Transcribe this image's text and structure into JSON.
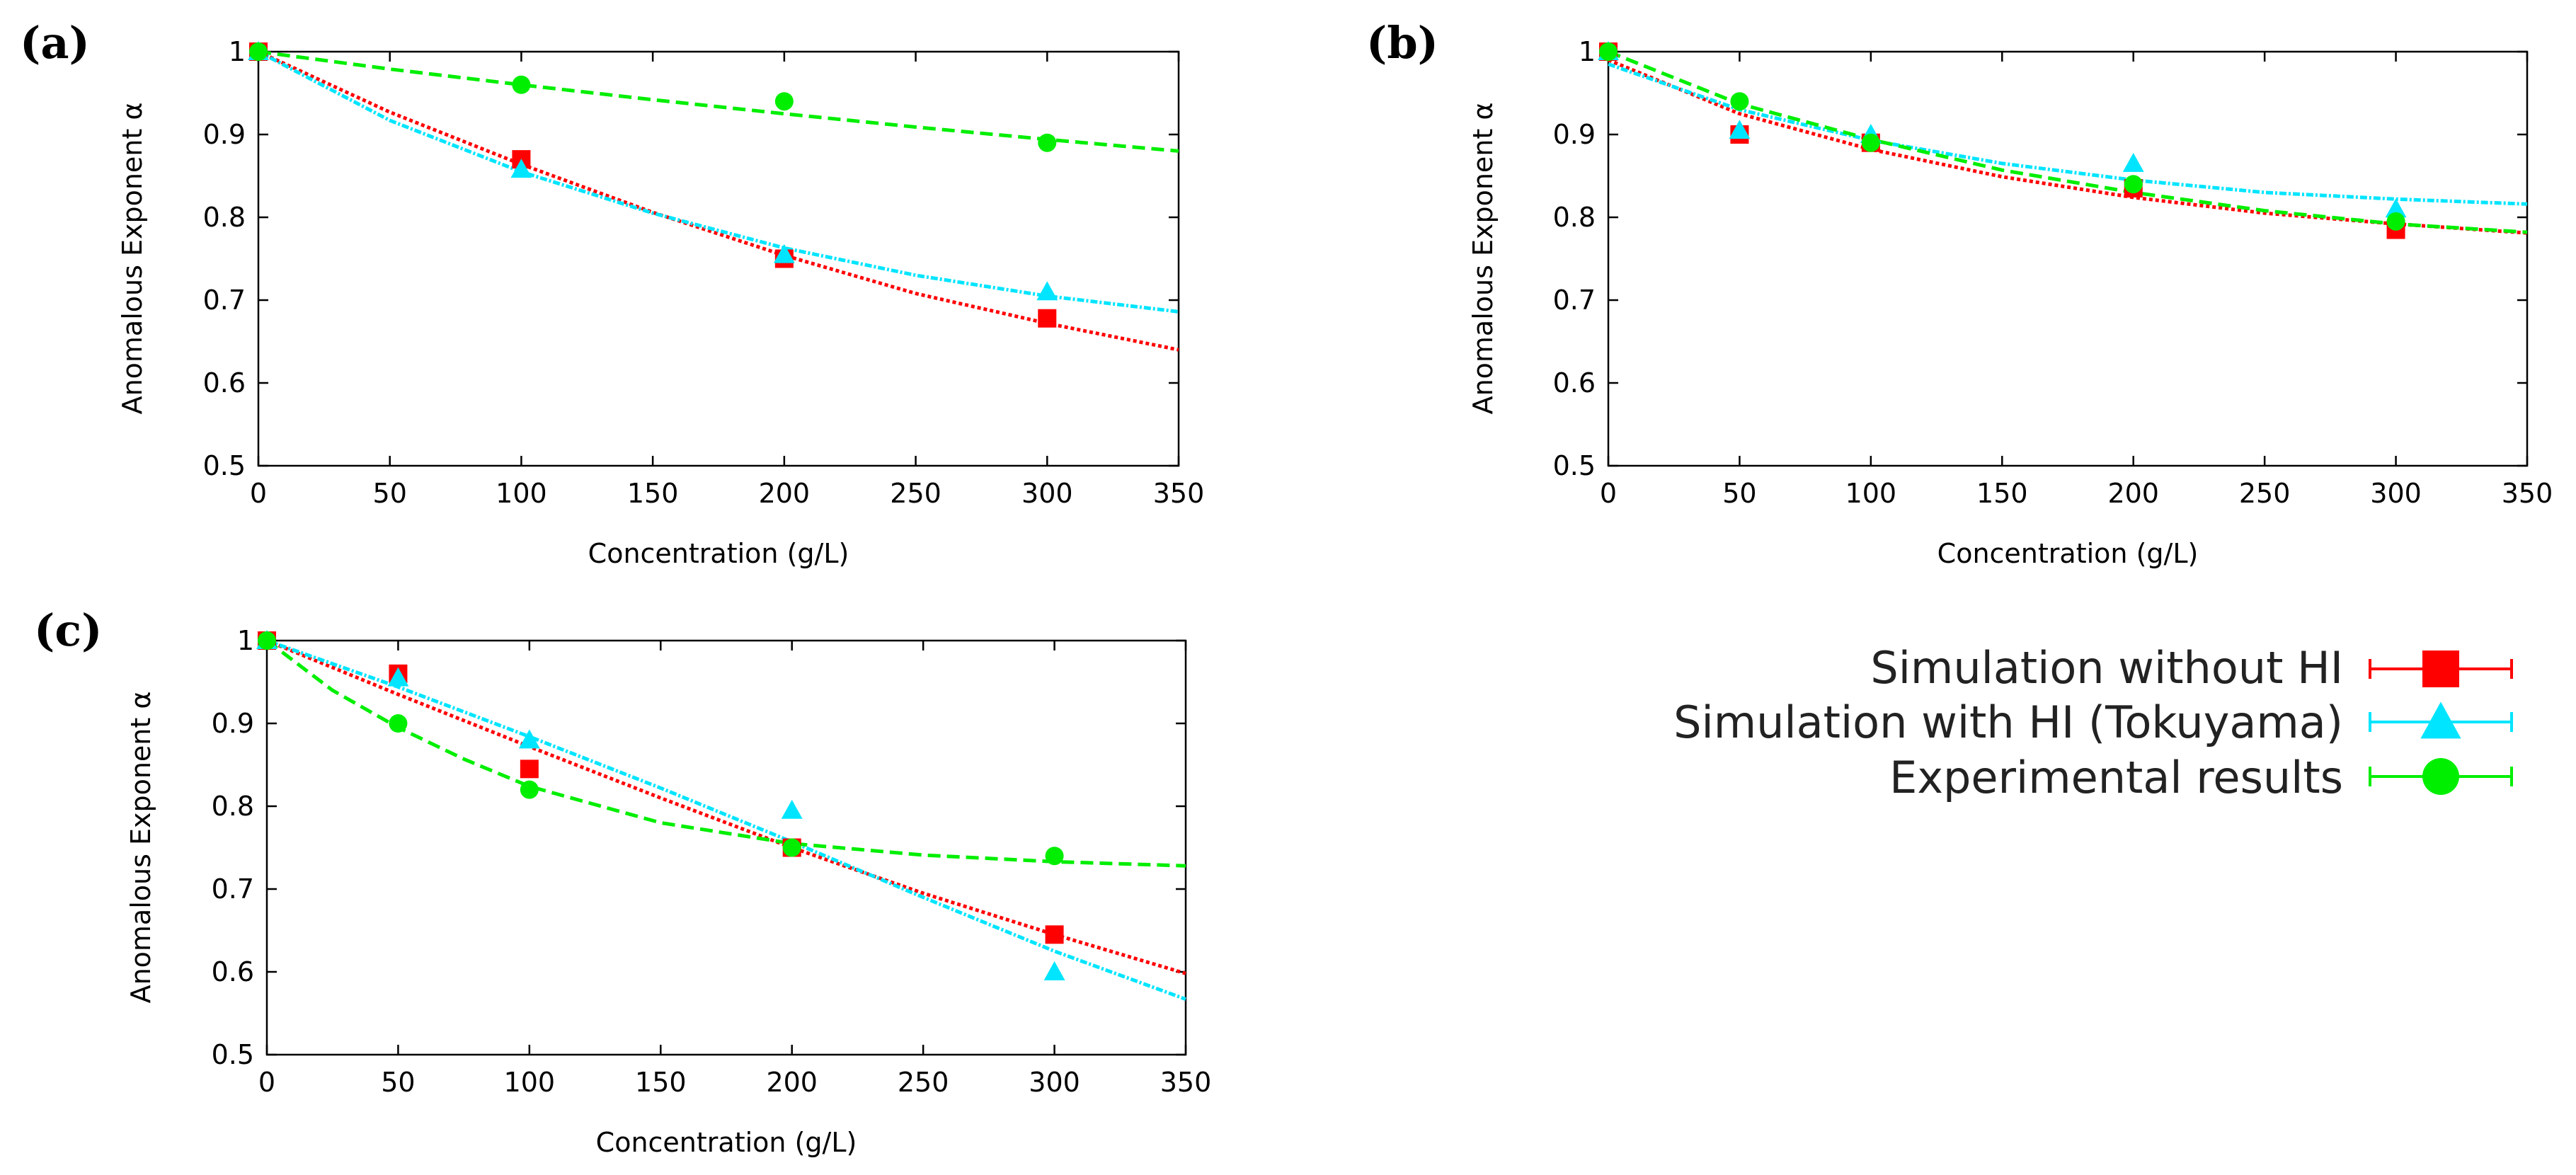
{
  "chart_data": [
    {
      "type": "scatter",
      "panel_label": "(a)",
      "xlabel": "Concentration (g/L)",
      "ylabel": "Anomalous Exponent α",
      "xlim": [
        0,
        350
      ],
      "ylim": [
        0.5,
        1
      ],
      "xticks": [
        "0",
        "50",
        "100",
        "150",
        "200",
        "250",
        "300",
        "350"
      ],
      "yticks": [
        "0.5",
        "0.6",
        "0.7",
        "0.8",
        "0.9",
        "1"
      ],
      "grid": false,
      "series": [
        {
          "name": "Simulation without HI",
          "color": "#ff0000",
          "marker": "square",
          "x": [
            0,
            100,
            200,
            300
          ],
          "y": [
            1.0,
            0.87,
            0.75,
            0.678
          ],
          "fit": [
            [
              0,
              1.0
            ],
            [
              50,
              0.927
            ],
            [
              100,
              0.864
            ],
            [
              150,
              0.806
            ],
            [
              200,
              0.754
            ],
            [
              250,
              0.708
            ],
            [
              300,
              0.672
            ],
            [
              350,
              0.64
            ]
          ]
        },
        {
          "name": "Simulation with HI (Tokuyama)",
          "color": "#00e5ff",
          "marker": "triangle",
          "x": [
            0,
            100,
            200,
            300
          ],
          "y": [
            1.0,
            0.858,
            0.755,
            0.71
          ],
          "fit": [
            [
              0,
              1.0
            ],
            [
              50,
              0.917
            ],
            [
              100,
              0.855
            ],
            [
              150,
              0.805
            ],
            [
              200,
              0.763
            ],
            [
              250,
              0.73
            ],
            [
              300,
              0.705
            ],
            [
              350,
              0.686
            ]
          ]
        },
        {
          "name": "Experimental results",
          "color": "#00ee00",
          "marker": "circle",
          "x": [
            0,
            100,
            200,
            300
          ],
          "y": [
            1.0,
            0.96,
            0.94,
            0.89
          ],
          "fit": [
            [
              0,
              1.0
            ],
            [
              50,
              0.979
            ],
            [
              100,
              0.96
            ],
            [
              150,
              0.942
            ],
            [
              200,
              0.925
            ],
            [
              250,
              0.909
            ],
            [
              300,
              0.894
            ],
            [
              350,
              0.88
            ]
          ]
        }
      ]
    },
    {
      "type": "scatter",
      "panel_label": "(b)",
      "xlabel": "Concentration (g/L)",
      "ylabel": "Anomalous Exponent α",
      "xlim": [
        0,
        350
      ],
      "ylim": [
        0.5,
        1
      ],
      "xticks": [
        "0",
        "50",
        "100",
        "150",
        "200",
        "250",
        "300",
        "350"
      ],
      "yticks": [
        "0.5",
        "0.6",
        "0.7",
        "0.8",
        "0.9",
        "1"
      ],
      "grid": false,
      "series": [
        {
          "name": "Simulation without HI",
          "color": "#ff0000",
          "marker": "square",
          "x": [
            0,
            50,
            100,
            200,
            300
          ],
          "y": [
            1.0,
            0.9,
            0.89,
            0.835,
            0.785
          ],
          "fit": [
            [
              0,
              0.99
            ],
            [
              50,
              0.925
            ],
            [
              100,
              0.882
            ],
            [
              150,
              0.849
            ],
            [
              200,
              0.824
            ],
            [
              250,
              0.805
            ],
            [
              300,
              0.792
            ],
            [
              350,
              0.781
            ]
          ]
        },
        {
          "name": "Simulation with HI (Tokuyama)",
          "color": "#00e5ff",
          "marker": "triangle",
          "x": [
            0,
            50,
            100,
            200,
            300
          ],
          "y": [
            1.0,
            0.905,
            0.9,
            0.865,
            0.81
          ],
          "fit": [
            [
              0,
              0.985
            ],
            [
              50,
              0.93
            ],
            [
              100,
              0.893
            ],
            [
              150,
              0.865
            ],
            [
              200,
              0.845
            ],
            [
              250,
              0.83
            ],
            [
              300,
              0.822
            ],
            [
              350,
              0.816
            ]
          ]
        },
        {
          "name": "Experimental results",
          "color": "#00ee00",
          "marker": "circle",
          "x": [
            0,
            50,
            100,
            200,
            300
          ],
          "y": [
            1.0,
            0.94,
            0.89,
            0.84,
            0.795
          ],
          "fit": [
            [
              0,
              1.0
            ],
            [
              50,
              0.937
            ],
            [
              100,
              0.894
            ],
            [
              150,
              0.857
            ],
            [
              200,
              0.83
            ],
            [
              250,
              0.808
            ],
            [
              300,
              0.792
            ],
            [
              350,
              0.782
            ]
          ]
        }
      ]
    },
    {
      "type": "scatter",
      "panel_label": "(c)",
      "xlabel": "Concentration (g/L)",
      "ylabel": "Anomalous Exponent α",
      "xlim": [
        0,
        350
      ],
      "ylim": [
        0.5,
        1
      ],
      "xticks": [
        "0",
        "50",
        "100",
        "150",
        "200",
        "250",
        "300",
        "350"
      ],
      "yticks": [
        "0.5",
        "0.6",
        "0.7",
        "0.8",
        "0.9",
        "1"
      ],
      "grid": false,
      "series": [
        {
          "name": "Simulation without HI",
          "color": "#ff0000",
          "marker": "square",
          "x": [
            0,
            50,
            100,
            200,
            300
          ],
          "y": [
            1.0,
            0.96,
            0.845,
            0.75,
            0.645
          ],
          "fit": [
            [
              0,
              1.0
            ],
            [
              50,
              0.935
            ],
            [
              100,
              0.872
            ],
            [
              150,
              0.81
            ],
            [
              200,
              0.75
            ],
            [
              250,
              0.695
            ],
            [
              300,
              0.645
            ],
            [
              350,
              0.598
            ]
          ]
        },
        {
          "name": "Simulation with HI (Tokuyama)",
          "color": "#00e5ff",
          "marker": "triangle",
          "x": [
            0,
            50,
            100,
            200,
            300
          ],
          "y": [
            1.0,
            0.955,
            0.88,
            0.795,
            0.6
          ],
          "fit": [
            [
              0,
              1.0
            ],
            [
              50,
              0.944
            ],
            [
              100,
              0.884
            ],
            [
              150,
              0.822
            ],
            [
              200,
              0.757
            ],
            [
              250,
              0.69
            ],
            [
              300,
              0.625
            ],
            [
              350,
              0.567
            ]
          ]
        },
        {
          "name": "Experimental results",
          "color": "#00ee00",
          "marker": "circle",
          "x": [
            0,
            50,
            100,
            200,
            300
          ],
          "y": [
            1.0,
            0.9,
            0.82,
            0.75,
            0.74
          ],
          "fit": [
            [
              0,
              1.0
            ],
            [
              25,
              0.94
            ],
            [
              50,
              0.895
            ],
            [
              75,
              0.857
            ],
            [
              100,
              0.824
            ],
            [
              150,
              0.78
            ],
            [
              200,
              0.755
            ],
            [
              250,
              0.741
            ],
            [
              300,
              0.733
            ],
            [
              350,
              0.728
            ]
          ]
        }
      ]
    }
  ],
  "legend": {
    "placement": "bottom-right",
    "entries": [
      {
        "label": "Simulation without HI",
        "color": "#ff0000",
        "marker": "square"
      },
      {
        "label": "Simulation with HI (Tokuyama)",
        "color": "#00e5ff",
        "marker": "triangle"
      },
      {
        "label": "Experimental results",
        "color": "#00ee00",
        "marker": "circle"
      }
    ]
  }
}
